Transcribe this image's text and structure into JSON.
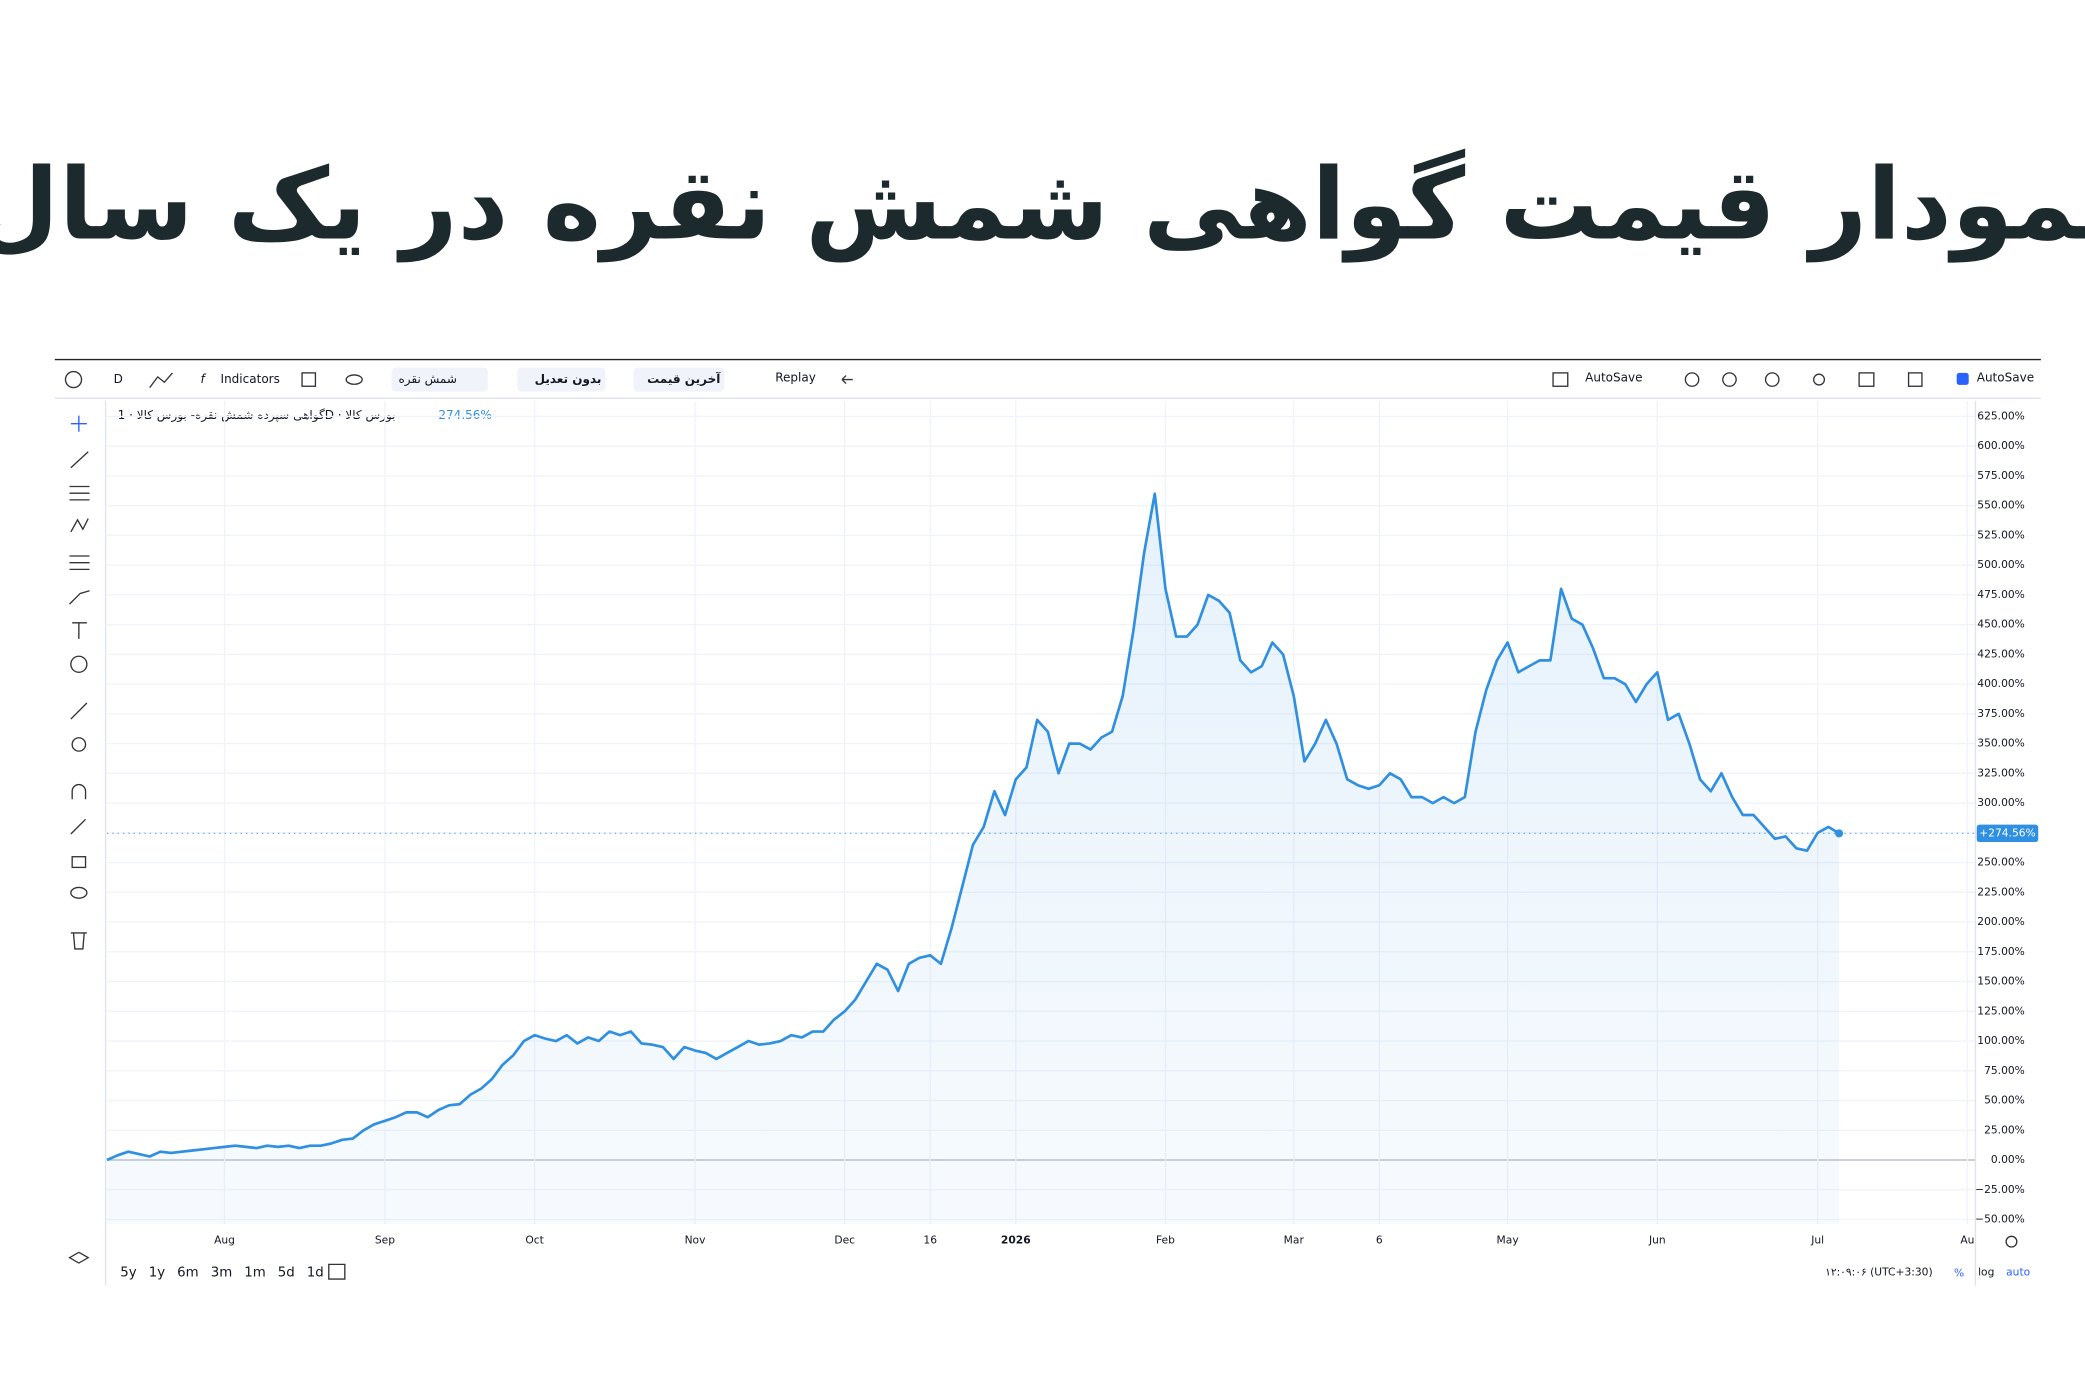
{
  "header": {
    "title": "نمودار قیمت گواهی شمش نقره در یک سال"
  },
  "toolbar": {
    "interval": "D",
    "indicators": "Indicators",
    "symbol": "شمش نقره",
    "adjustment": "بدون تعدیل",
    "price_type": "آخرین قیمت",
    "replay": "Replay",
    "autosave_left": "AutoSave",
    "autosave_right": "AutoSave"
  },
  "chart_data": {
    "type": "area",
    "legend_text": "گواهی سپرده شمش نقره- بورس کالا · 1D · بورس کالا",
    "legend_value": "274.56%",
    "price_badge": "+274.56%",
    "color": "#2f8fe0",
    "categories": [
      null,
      null,
      null,
      null,
      null,
      null,
      null,
      null,
      null,
      null,
      null,
      "Aug",
      null,
      null,
      null,
      null,
      null,
      null,
      null,
      null,
      null,
      null,
      null,
      null,
      null,
      null,
      "Sep",
      null,
      null,
      null,
      null,
      null,
      null,
      null,
      null,
      null,
      null,
      null,
      null,
      null,
      "Oct",
      null,
      null,
      null,
      null,
      null,
      null,
      null,
      null,
      null,
      null,
      null,
      null,
      null,
      null,
      "Nov",
      null,
      null,
      null,
      null,
      null,
      null,
      null,
      null,
      null,
      null,
      null,
      null,
      null,
      "Dec",
      null,
      null,
      null,
      null,
      null,
      null,
      null,
      "16",
      null,
      null,
      null,
      null,
      null,
      null,
      null,
      "2026",
      null,
      null,
      null,
      null,
      null,
      null,
      null,
      null,
      null,
      null,
      null,
      null,
      null,
      "Feb",
      null,
      null,
      null,
      null,
      null,
      null,
      null,
      null,
      null,
      null,
      null,
      "Mar",
      null,
      null,
      null,
      null,
      null,
      null,
      null,
      "6",
      null,
      null,
      null,
      null,
      null,
      null,
      null,
      null,
      null,
      null,
      null,
      "May",
      null,
      null,
      null,
      null,
      null,
      null,
      null,
      null,
      null,
      null,
      null,
      null,
      null,
      "Jun",
      null,
      null,
      null,
      null,
      null,
      null,
      null,
      null,
      null,
      null,
      null,
      null,
      null,
      null,
      "Jul",
      null,
      null,
      null,
      null,
      null,
      null,
      null,
      null,
      null,
      null,
      null,
      null,
      null,
      "Au",
      null
    ],
    "values": [
      0,
      4,
      7,
      5,
      3,
      7,
      6,
      7,
      8,
      9,
      10,
      11,
      12,
      11,
      10,
      12,
      11,
      12,
      10,
      12,
      12,
      14,
      17,
      18,
      25,
      30,
      33,
      36,
      40,
      40,
      36,
      42,
      46,
      47,
      55,
      60,
      68,
      80,
      88,
      100,
      105,
      102,
      100,
      105,
      98,
      103,
      100,
      108,
      105,
      108,
      98,
      97,
      95,
      85,
      95,
      92,
      90,
      85,
      90,
      95,
      100,
      97,
      98,
      100,
      105,
      103,
      108,
      108,
      118,
      125,
      135,
      150,
      165,
      160,
      142,
      165,
      170,
      172,
      165,
      195,
      230,
      265,
      280,
      310,
      290,
      320,
      330,
      370,
      360,
      325,
      350,
      350,
      345,
      355,
      360,
      390,
      445,
      510,
      560,
      480,
      440,
      440,
      450,
      475,
      470,
      460,
      420,
      410,
      415,
      435,
      425,
      390,
      335,
      350,
      370,
      350,
      320,
      315,
      312,
      315,
      325,
      320,
      305,
      305,
      300,
      305,
      300,
      305,
      360,
      395,
      420,
      435,
      410,
      415,
      420,
      420,
      480,
      455,
      450,
      430,
      405,
      405,
      400,
      385,
      400,
      410,
      370,
      375,
      350,
      320,
      310,
      325,
      305,
      290,
      290,
      280,
      270,
      272,
      262,
      260,
      275,
      280,
      274.56,
      null,
      null,
      null,
      null,
      null,
      null,
      null,
      null,
      null,
      null,
      null,
      null,
      null
    ],
    "ylim": [
      -54,
      638
    ],
    "yticks": [
      {
        "value": -50,
        "label": "−50.00%"
      },
      {
        "value": -25,
        "label": "−25.00%"
      },
      {
        "value": 0,
        "label": "0.00%"
      },
      {
        "value": 25,
        "label": "25.00%"
      },
      {
        "value": 50,
        "label": "50.00%"
      },
      {
        "value": 75,
        "label": "75.00%"
      },
      {
        "value": 100,
        "label": "100.00%"
      },
      {
        "value": 125,
        "label": "125.00%"
      },
      {
        "value": 150,
        "label": "150.00%"
      },
      {
        "value": 175,
        "label": "175.00%"
      },
      {
        "value": 200,
        "label": "200.00%"
      },
      {
        "value": 225,
        "label": "225.00%"
      },
      {
        "value": 250,
        "label": "250.00%"
      },
      {
        "value": 275,
        "label": "275.00%"
      },
      {
        "value": 300,
        "label": "300.00%"
      },
      {
        "value": 325,
        "label": "325.00%"
      },
      {
        "value": 350,
        "label": "350.00%"
      },
      {
        "value": 375,
        "label": "375.00%"
      },
      {
        "value": 400,
        "label": "400.00%"
      },
      {
        "value": 425,
        "label": "425.00%"
      },
      {
        "value": 450,
        "label": "450.00%"
      },
      {
        "value": 475,
        "label": "475.00%"
      },
      {
        "value": 500,
        "label": "500.00%"
      },
      {
        "value": 525,
        "label": "525.00%"
      },
      {
        "value": 550,
        "label": "550.00%"
      },
      {
        "value": 575,
        "label": "575.00%"
      },
      {
        "value": 600,
        "label": "600.00%"
      },
      {
        "value": 625,
        "label": "625.00%"
      }
    ],
    "grid": true
  },
  "footer": {
    "periods": [
      "5y",
      "1y",
      "6m",
      "3m",
      "1m",
      "5d",
      "1d"
    ],
    "clock": "۱۲:۰۹:۰۶ (UTC+3:30)",
    "percent": "%",
    "log": "log",
    "auto": "auto"
  }
}
